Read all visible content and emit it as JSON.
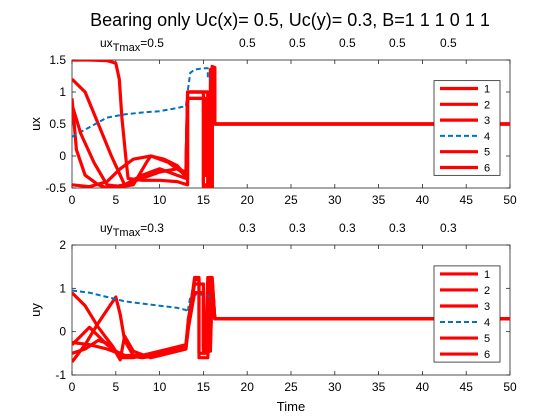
{
  "figure": {
    "title": "Bearing only   Uc(x)= 0.5, Uc(y)= 0.3, B=1  1  1  0  1  1"
  },
  "colors": {
    "solid_series": "#ff0000",
    "dashed_series": "#0072bd",
    "axis": "#262626"
  },
  "chart_data": [
    {
      "type": "line",
      "ylabel": "ux",
      "xlabel": "",
      "xlim": [
        0,
        50
      ],
      "ylim": [
        -0.5,
        1.5
      ],
      "xticks": [
        0,
        5,
        10,
        15,
        20,
        25,
        30,
        35,
        40,
        45,
        50
      ],
      "yticks": [
        -0.5,
        0,
        0.5,
        1,
        1.5
      ],
      "annotation": {
        "prefix": "ux",
        "sub": "Tmax",
        "values": [
          "=0.5",
          "0.5",
          "0.5",
          "0.5",
          "0.5",
          "0.5"
        ]
      },
      "legend": {
        "placement": "right",
        "entries": [
          "1",
          "2",
          "3",
          "4",
          "5",
          "6"
        ]
      },
      "series": [
        {
          "name": "1",
          "style": "solid",
          "points": [
            [
              0,
              1.5
            ],
            [
              2,
              1.5
            ],
            [
              4,
              1.49
            ],
            [
              5,
              1.45
            ],
            [
              5.4,
              1.2
            ],
            [
              5.7,
              0.6
            ],
            [
              6.2,
              -0.1
            ],
            [
              6.4,
              -0.35
            ],
            [
              8,
              -0.38
            ],
            [
              10,
              -0.38
            ],
            [
              12,
              -0.4
            ],
            [
              13.2,
              -0.45
            ],
            [
              13.2,
              1.0
            ],
            [
              14,
              1.0
            ],
            [
              15.5,
              1.0
            ],
            [
              15.5,
              -0.5
            ],
            [
              16,
              -0.5
            ],
            [
              16,
              1.4
            ],
            [
              16.3,
              1.38
            ],
            [
              16.3,
              0.5
            ],
            [
              20,
              0.5
            ],
            [
              30,
              0.5
            ],
            [
              40,
              0.5
            ],
            [
              50,
              0.5
            ]
          ]
        },
        {
          "name": "2",
          "style": "solid",
          "points": [
            [
              0,
              0.9
            ],
            [
              0.5,
              0.1
            ],
            [
              1.5,
              -0.3
            ],
            [
              3,
              -0.45
            ],
            [
              4,
              -0.5
            ],
            [
              6,
              -0.45
            ],
            [
              8,
              -0.3
            ],
            [
              10,
              -0.2
            ],
            [
              12,
              -0.3
            ],
            [
              13,
              -0.35
            ],
            [
              13.2,
              1.0
            ],
            [
              15.5,
              1.0
            ],
            [
              15.5,
              -0.5
            ],
            [
              16,
              -0.5
            ],
            [
              16,
              1.38
            ],
            [
              16.3,
              1.38
            ],
            [
              16.3,
              0.5
            ],
            [
              50,
              0.5
            ]
          ]
        },
        {
          "name": "3",
          "style": "solid",
          "points": [
            [
              0,
              1.2
            ],
            [
              1.5,
              1.0
            ],
            [
              3,
              0.5
            ],
            [
              4.5,
              0.0
            ],
            [
              5.5,
              -0.3
            ],
            [
              6,
              -0.45
            ],
            [
              8,
              -0.35
            ],
            [
              10,
              -0.25
            ],
            [
              12,
              -0.2
            ],
            [
              13,
              -0.25
            ],
            [
              13.2,
              0.9
            ],
            [
              15,
              0.9
            ],
            [
              15,
              -0.45
            ],
            [
              15.8,
              -0.45
            ],
            [
              15.8,
              1.35
            ],
            [
              16.3,
              1.35
            ],
            [
              16.3,
              0.5
            ],
            [
              50,
              0.5
            ]
          ]
        },
        {
          "name": "4",
          "style": "dashed",
          "points": [
            [
              0,
              0.3
            ],
            [
              2,
              0.45
            ],
            [
              4,
              0.6
            ],
            [
              6,
              0.65
            ],
            [
              8,
              0.68
            ],
            [
              10,
              0.7
            ],
            [
              12,
              0.75
            ],
            [
              13,
              0.78
            ],
            [
              13.2,
              1.0
            ],
            [
              13.5,
              1.3
            ],
            [
              14,
              1.35
            ],
            [
              15,
              1.37
            ],
            [
              15.5,
              1.37
            ],
            [
              15.5,
              1.2
            ],
            [
              16,
              1.2
            ],
            [
              16.3,
              1.38
            ],
            [
              16.3,
              0.5
            ],
            [
              50,
              0.5
            ]
          ]
        },
        {
          "name": "5",
          "style": "solid",
          "points": [
            [
              0,
              0.8
            ],
            [
              1,
              0.35
            ],
            [
              2.5,
              -0.1
            ],
            [
              4,
              -0.45
            ],
            [
              5.5,
              -0.48
            ],
            [
              7,
              -0.45
            ],
            [
              8.5,
              -0.1
            ],
            [
              9,
              0.0
            ],
            [
              10.5,
              -0.05
            ],
            [
              12,
              -0.15
            ],
            [
              13,
              -0.3
            ],
            [
              13.2,
              1.0
            ],
            [
              15,
              1.0
            ],
            [
              15,
              -0.5
            ],
            [
              16,
              -0.5
            ],
            [
              16,
              1.38
            ],
            [
              16.3,
              1.38
            ],
            [
              16.3,
              0.5
            ],
            [
              50,
              0.5
            ]
          ]
        },
        {
          "name": "6",
          "style": "solid",
          "points": [
            [
              0,
              -0.45
            ],
            [
              2,
              -0.48
            ],
            [
              4,
              -0.4
            ],
            [
              5.5,
              -0.2
            ],
            [
              7,
              -0.05
            ],
            [
              9,
              0.0
            ],
            [
              11,
              -0.1
            ],
            [
              12.5,
              -0.25
            ],
            [
              13.2,
              -0.35
            ],
            [
              13.2,
              0.9
            ],
            [
              15.2,
              0.9
            ],
            [
              15.2,
              -0.3
            ],
            [
              16,
              -0.35
            ],
            [
              16,
              1.3
            ],
            [
              16.3,
              1.3
            ],
            [
              16.3,
              0.5
            ],
            [
              50,
              0.5
            ]
          ]
        }
      ]
    },
    {
      "type": "line",
      "ylabel": "uy",
      "xlabel": "Time",
      "xlim": [
        0,
        50
      ],
      "ylim": [
        -1,
        2
      ],
      "xticks": [
        0,
        5,
        10,
        15,
        20,
        25,
        30,
        35,
        40,
        45,
        50
      ],
      "yticks": [
        -1,
        0,
        1,
        2
      ],
      "annotation": {
        "prefix": "uy",
        "sub": "Tmax",
        "values": [
          "=0.3",
          "0.3",
          "0.3",
          "0.3",
          "0.3",
          "0.3"
        ]
      },
      "legend": {
        "placement": "right",
        "entries": [
          "1",
          "2",
          "3",
          "4",
          "5",
          "6"
        ]
      },
      "series": [
        {
          "name": "1",
          "style": "solid",
          "points": [
            [
              0,
              -0.25
            ],
            [
              2,
              -0.3
            ],
            [
              4,
              -0.4
            ],
            [
              6,
              -0.55
            ],
            [
              8,
              -0.6
            ],
            [
              10,
              -0.55
            ],
            [
              12,
              -0.45
            ],
            [
              13,
              -0.4
            ],
            [
              13.3,
              0.3
            ],
            [
              14,
              1.2
            ],
            [
              14.5,
              1.2
            ],
            [
              14.5,
              -0.6
            ],
            [
              15.5,
              -0.6
            ],
            [
              15.8,
              1.2
            ],
            [
              16,
              1.2
            ],
            [
              16.3,
              0.3
            ],
            [
              50,
              0.3
            ]
          ]
        },
        {
          "name": "2",
          "style": "solid",
          "points": [
            [
              0,
              -0.7
            ],
            [
              1.5,
              -0.3
            ],
            [
              3,
              0.2
            ],
            [
              4,
              0.5
            ],
            [
              5,
              0.8
            ],
            [
              5.5,
              0.4
            ],
            [
              6,
              -0.2
            ],
            [
              7,
              -0.55
            ],
            [
              9,
              -0.55
            ],
            [
              11,
              -0.45
            ],
            [
              13,
              -0.35
            ],
            [
              13.5,
              0.5
            ],
            [
              14,
              1.25
            ],
            [
              14.5,
              1.25
            ],
            [
              14.5,
              -0.5
            ],
            [
              15.2,
              -0.5
            ],
            [
              15.5,
              1.25
            ],
            [
              16,
              1.25
            ],
            [
              16.3,
              0.3
            ],
            [
              50,
              0.3
            ]
          ]
        },
        {
          "name": "3",
          "style": "solid",
          "points": [
            [
              0,
              -0.3
            ],
            [
              1,
              -0.1
            ],
            [
              2,
              0.1
            ],
            [
              3,
              -0.1
            ],
            [
              4,
              -0.3
            ],
            [
              5,
              -0.45
            ],
            [
              6,
              -0.55
            ],
            [
              8,
              -0.55
            ],
            [
              10,
              -0.5
            ],
            [
              12,
              -0.4
            ],
            [
              13,
              -0.3
            ],
            [
              13.3,
              0.2
            ],
            [
              14,
              0.9
            ],
            [
              15,
              0.9
            ],
            [
              15,
              -0.4
            ],
            [
              15.6,
              -0.4
            ],
            [
              16,
              1.0
            ],
            [
              16.3,
              0.3
            ],
            [
              50,
              0.3
            ]
          ]
        },
        {
          "name": "4",
          "style": "dashed",
          "points": [
            [
              0,
              0.95
            ],
            [
              2,
              0.9
            ],
            [
              4,
              0.8
            ],
            [
              6,
              0.7
            ],
            [
              8,
              0.65
            ],
            [
              10,
              0.6
            ],
            [
              12,
              0.55
            ],
            [
              13,
              0.5
            ],
            [
              13.2,
              0.45
            ],
            [
              13.5,
              0.8
            ],
            [
              14,
              0.85
            ],
            [
              15,
              0.85
            ],
            [
              16,
              0.8
            ],
            [
              16.3,
              0.3
            ],
            [
              50,
              0.3
            ]
          ]
        },
        {
          "name": "5",
          "style": "solid",
          "points": [
            [
              0,
              0.9
            ],
            [
              1.5,
              0.6
            ],
            [
              3,
              0.1
            ],
            [
              4.5,
              -0.3
            ],
            [
              5.5,
              -0.6
            ],
            [
              7,
              -0.6
            ],
            [
              9,
              -0.5
            ],
            [
              11,
              -0.4
            ],
            [
              13,
              -0.3
            ],
            [
              13.3,
              0.3
            ],
            [
              14,
              1.1
            ],
            [
              15,
              1.1
            ],
            [
              15,
              -0.45
            ],
            [
              15.8,
              -0.45
            ],
            [
              16,
              1.1
            ],
            [
              16.3,
              0.3
            ],
            [
              50,
              0.3
            ]
          ]
        },
        {
          "name": "6",
          "style": "solid",
          "points": [
            [
              0,
              -0.5
            ],
            [
              1.5,
              -0.4
            ],
            [
              3,
              -0.2
            ],
            [
              4.5,
              -0.3
            ],
            [
              5.5,
              -0.65
            ],
            [
              6,
              -0.1
            ],
            [
              7,
              -0.45
            ],
            [
              9,
              -0.6
            ],
            [
              11,
              -0.5
            ],
            [
              13,
              -0.4
            ],
            [
              13.3,
              0.1
            ],
            [
              14,
              0.9
            ],
            [
              15,
              0.9
            ],
            [
              15,
              -0.3
            ],
            [
              15.8,
              -0.3
            ],
            [
              16,
              1.0
            ],
            [
              16.3,
              0.3
            ],
            [
              50,
              0.3
            ]
          ]
        }
      ]
    }
  ]
}
